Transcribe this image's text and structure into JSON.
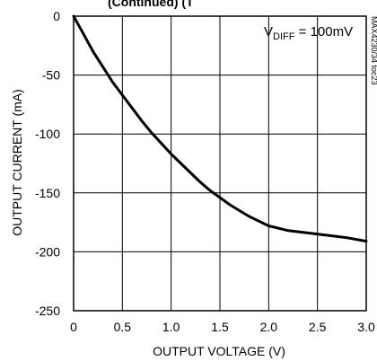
{
  "top_banner": "(Continued) (T",
  "chart_data": {
    "type": "line",
    "title": "",
    "xlabel": "OUTPUT VOLTAGE (V)",
    "ylabel": "OUTPUT CURRENT (mA)",
    "xlim": [
      0,
      3.0
    ],
    "ylim": [
      -250,
      0
    ],
    "x_ticks": [
      0,
      0.5,
      1.0,
      1.5,
      2.0,
      2.5,
      3.0
    ],
    "x_tick_labels": [
      "0",
      "0.5",
      "1.0",
      "1.5",
      "2.0",
      "2.5",
      "3.0"
    ],
    "y_ticks": [
      0,
      -50,
      -100,
      -150,
      -200,
      -250
    ],
    "y_tick_labels": [
      "0",
      "-50",
      "-100",
      "-150",
      "-200",
      "-250"
    ],
    "grid": true,
    "annotation": {
      "prefix": "V",
      "subscript": "DIFF",
      "suffix": " = 100mV"
    },
    "side_note": "MAX4230/34 toc23",
    "series": [
      {
        "x": [
          0,
          0.1,
          0.2,
          0.3,
          0.4,
          0.5,
          0.6,
          0.7,
          0.8,
          0.9,
          1.0,
          1.1,
          1.2,
          1.3,
          1.4,
          1.5,
          1.6,
          1.7,
          1.8,
          1.9,
          2.0,
          2.2,
          2.4,
          2.6,
          2.8,
          3.0
        ],
        "y": [
          0,
          -15,
          -30,
          -43,
          -56,
          -67,
          -78,
          -89,
          -99,
          -108,
          -117,
          -125,
          -133,
          -141,
          -148,
          -154,
          -160,
          -165,
          -170,
          -174,
          -178,
          -182,
          -184,
          -186,
          -188,
          -191
        ],
        "color": "#000000"
      }
    ]
  }
}
